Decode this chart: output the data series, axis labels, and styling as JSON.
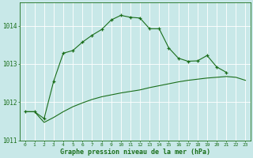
{
  "hours": [
    0,
    1,
    2,
    3,
    4,
    5,
    6,
    7,
    8,
    9,
    10,
    11,
    12,
    13,
    14,
    15,
    16,
    17,
    18,
    19,
    20,
    21,
    22,
    23
  ],
  "line1_x": [
    0,
    1,
    2,
    3,
    4,
    5,
    6,
    7,
    8,
    9,
    10,
    11,
    12,
    13,
    14,
    15,
    16,
    17,
    18,
    19,
    20,
    21
  ],
  "line1_y": [
    1011.75,
    1011.75,
    1011.57,
    1012.55,
    1013.28,
    1013.35,
    1013.57,
    1013.75,
    1013.9,
    1014.15,
    1014.27,
    1014.22,
    1014.2,
    1013.92,
    1013.92,
    1013.42,
    1013.15,
    1013.07,
    1013.08,
    1013.22,
    1012.92,
    1012.78
  ],
  "line2_x": [
    0,
    1,
    2,
    3,
    4,
    5,
    6,
    7,
    8,
    9,
    10,
    11,
    12,
    13,
    14,
    15,
    16,
    17,
    18,
    19,
    20,
    21,
    22,
    23
  ],
  "line2_y": [
    1011.75,
    1011.75,
    1011.47,
    1011.6,
    1011.75,
    1011.88,
    1011.98,
    1012.07,
    1012.14,
    1012.19,
    1012.24,
    1012.28,
    1012.32,
    1012.38,
    1012.43,
    1012.48,
    1012.53,
    1012.57,
    1012.6,
    1012.63,
    1012.65,
    1012.67,
    1012.65,
    1012.57
  ],
  "ylim": [
    1011.0,
    1014.6
  ],
  "yticks": [
    1011,
    1012,
    1013,
    1014
  ],
  "xlim": [
    -0.5,
    23.5
  ],
  "bg_color": "#c8e8e8",
  "line_color": "#1a6e1a",
  "grid_color": "#aacccc",
  "xlabel": "Graphe pression niveau de la mer (hPa)"
}
